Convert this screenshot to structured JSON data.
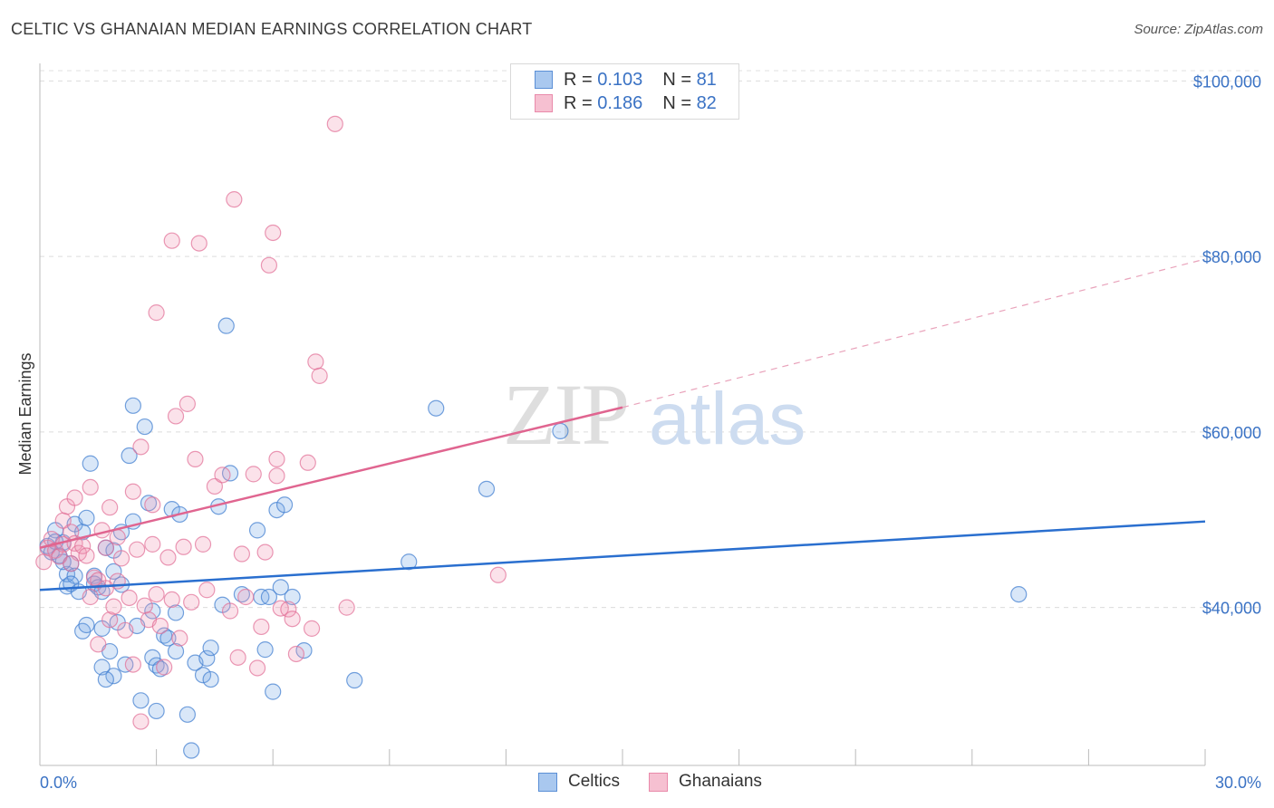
{
  "title": "CELTIC VS GHANAIAN MEDIAN EARNINGS CORRELATION CHART",
  "source": "Source: ZipAtlas.com",
  "watermark": {
    "zip": "ZIP",
    "atlas": "atlas"
  },
  "legend": {
    "rows": [
      {
        "r_label": "R = ",
        "r_value": "0.103",
        "n_label": "N = ",
        "n_value": "81",
        "color": "#a9c8ef",
        "stroke": "#5b8fd6"
      },
      {
        "r_label": "R = ",
        "r_value": "0.186",
        "n_label": "N = ",
        "n_value": "82",
        "color": "#f6c0d1",
        "stroke": "#e98aaa"
      }
    ]
  },
  "bottom_legend": [
    {
      "label": "Celtics",
      "color": "#a9c8ef",
      "stroke": "#5b8fd6"
    },
    {
      "label": "Ghanaians",
      "color": "#f6c0d1",
      "stroke": "#e98aaa"
    }
  ],
  "chart_data": {
    "type": "scatter",
    "title": "CELTIC VS GHANAIAN MEDIAN EARNINGS CORRELATION CHART",
    "xlabel": "",
    "ylabel": "Median Earnings",
    "xlim": [
      0,
      30
    ],
    "ylim": [
      22000,
      102000
    ],
    "x_tick_labels": [
      "0.0%",
      "30.0%"
    ],
    "y_ticks": [
      40000,
      60000,
      80000,
      100000
    ],
    "y_tick_labels": [
      "$40,000",
      "$60,000",
      "$80,000",
      "$100,000"
    ],
    "colors": {
      "celtics": "#4a86d8",
      "ghanaians": "#e57aa0",
      "celtics_line": "#2a6fcf",
      "ghanaians_line": "#e06590"
    },
    "series": [
      {
        "name": "Celtics",
        "trend": {
          "x0": 0,
          "y0": 42000,
          "x1": 30,
          "y1": 49800
        },
        "points": [
          [
            0.2,
            47000
          ],
          [
            0.3,
            46300
          ],
          [
            0.4,
            48800
          ],
          [
            0.5,
            45900
          ],
          [
            0.6,
            47400
          ],
          [
            0.7,
            42400
          ],
          [
            0.7,
            43800
          ],
          [
            0.8,
            45000
          ],
          [
            0.9,
            43600
          ],
          [
            0.9,
            49500
          ],
          [
            0.8,
            42700
          ],
          [
            1.0,
            41800
          ],
          [
            1.1,
            37300
          ],
          [
            1.2,
            50200
          ],
          [
            1.1,
            48600
          ],
          [
            1.3,
            56400
          ],
          [
            1.4,
            43600
          ],
          [
            1.4,
            42700
          ],
          [
            1.5,
            42300
          ],
          [
            1.2,
            38000
          ],
          [
            1.6,
            41800
          ],
          [
            1.7,
            46800
          ],
          [
            1.9,
            46500
          ],
          [
            1.8,
            35000
          ],
          [
            1.9,
            32200
          ],
          [
            2.0,
            38300
          ],
          [
            2.1,
            42600
          ],
          [
            2.1,
            48600
          ],
          [
            2.2,
            33500
          ],
          [
            1.6,
            33200
          ],
          [
            1.7,
            31800
          ],
          [
            1.6,
            37600
          ],
          [
            1.9,
            44100
          ],
          [
            2.3,
            57300
          ],
          [
            2.4,
            49800
          ],
          [
            2.4,
            63000
          ],
          [
            2.5,
            37900
          ],
          [
            2.6,
            29400
          ],
          [
            2.7,
            60600
          ],
          [
            2.8,
            51900
          ],
          [
            2.9,
            34300
          ],
          [
            2.9,
            39600
          ],
          [
            3.0,
            28200
          ],
          [
            3.0,
            33400
          ],
          [
            3.1,
            33000
          ],
          [
            3.2,
            36800
          ],
          [
            3.3,
            36500
          ],
          [
            3.4,
            51200
          ],
          [
            3.5,
            35000
          ],
          [
            3.5,
            39400
          ],
          [
            3.6,
            50600
          ],
          [
            3.8,
            27800
          ],
          [
            3.9,
            23700
          ],
          [
            4.0,
            33700
          ],
          [
            4.2,
            32300
          ],
          [
            4.3,
            34200
          ],
          [
            4.4,
            31800
          ],
          [
            4.4,
            35400
          ],
          [
            4.6,
            51500
          ],
          [
            4.7,
            40300
          ],
          [
            4.8,
            72100
          ],
          [
            4.9,
            55300
          ],
          [
            5.2,
            41500
          ],
          [
            5.6,
            48800
          ],
          [
            5.7,
            41200
          ],
          [
            5.8,
            35200
          ],
          [
            5.9,
            41200
          ],
          [
            6.0,
            30400
          ],
          [
            6.1,
            51100
          ],
          [
            6.3,
            51700
          ],
          [
            6.2,
            42300
          ],
          [
            6.5,
            41200
          ],
          [
            6.8,
            35100
          ],
          [
            8.1,
            31700
          ],
          [
            9.5,
            45200
          ],
          [
            10.2,
            62700
          ],
          [
            11.5,
            53500
          ],
          [
            13.4,
            60100
          ],
          [
            25.2,
            41500
          ],
          [
            0.6,
            45200
          ],
          [
            0.4,
            47500
          ]
        ]
      },
      {
        "name": "Ghanaians",
        "trend": {
          "x0": 0,
          "y0": 46800,
          "x1": 15,
          "y1": 62800
        },
        "dashed_extension": {
          "x0": 15,
          "y0": 62800,
          "x1": 30,
          "y1": 79700
        },
        "points": [
          [
            0.1,
            45200
          ],
          [
            0.2,
            46800
          ],
          [
            0.3,
            47800
          ],
          [
            0.4,
            46500
          ],
          [
            0.5,
            45800
          ],
          [
            0.6,
            47200
          ],
          [
            0.6,
            49900
          ],
          [
            0.7,
            51500
          ],
          [
            0.8,
            48600
          ],
          [
            0.9,
            47300
          ],
          [
            0.9,
            52500
          ],
          [
            1.0,
            46200
          ],
          [
            1.1,
            47000
          ],
          [
            1.2,
            45900
          ],
          [
            1.3,
            53700
          ],
          [
            1.3,
            41200
          ],
          [
            1.4,
            43400
          ],
          [
            1.5,
            35800
          ],
          [
            1.6,
            48800
          ],
          [
            1.7,
            42200
          ],
          [
            1.7,
            46800
          ],
          [
            1.8,
            51400
          ],
          [
            1.8,
            38600
          ],
          [
            1.9,
            40100
          ],
          [
            2.0,
            43000
          ],
          [
            2.0,
            48000
          ],
          [
            2.1,
            45600
          ],
          [
            2.2,
            37400
          ],
          [
            2.3,
            41100
          ],
          [
            2.4,
            33500
          ],
          [
            2.4,
            53200
          ],
          [
            2.5,
            46600
          ],
          [
            2.6,
            27000
          ],
          [
            2.6,
            58300
          ],
          [
            2.7,
            40200
          ],
          [
            2.8,
            38600
          ],
          [
            2.9,
            47200
          ],
          [
            2.9,
            51700
          ],
          [
            3.0,
            73600
          ],
          [
            3.0,
            41500
          ],
          [
            3.1,
            37900
          ],
          [
            3.2,
            33200
          ],
          [
            3.3,
            45700
          ],
          [
            3.4,
            40900
          ],
          [
            3.4,
            81800
          ],
          [
            3.5,
            61800
          ],
          [
            3.6,
            36500
          ],
          [
            3.7,
            46900
          ],
          [
            3.8,
            63200
          ],
          [
            4.0,
            56900
          ],
          [
            4.1,
            81500
          ],
          [
            4.2,
            47200
          ],
          [
            4.3,
            42000
          ],
          [
            4.5,
            53800
          ],
          [
            4.7,
            55100
          ],
          [
            4.9,
            39600
          ],
          [
            5.0,
            86500
          ],
          [
            5.1,
            34300
          ],
          [
            5.2,
            46100
          ],
          [
            5.3,
            41200
          ],
          [
            5.5,
            55200
          ],
          [
            5.6,
            33100
          ],
          [
            5.7,
            37800
          ],
          [
            5.8,
            46300
          ],
          [
            5.9,
            79000
          ],
          [
            6.0,
            82700
          ],
          [
            6.1,
            56900
          ],
          [
            6.1,
            55000
          ],
          [
            6.2,
            39900
          ],
          [
            6.4,
            39800
          ],
          [
            6.5,
            38700
          ],
          [
            6.6,
            34700
          ],
          [
            6.9,
            56500
          ],
          [
            7.0,
            37600
          ],
          [
            7.1,
            68000
          ],
          [
            7.2,
            66400
          ],
          [
            7.6,
            95100
          ],
          [
            7.9,
            40000
          ],
          [
            11.8,
            43700
          ],
          [
            0.8,
            45000
          ],
          [
            1.5,
            43100
          ],
          [
            3.9,
            40600
          ]
        ]
      }
    ]
  }
}
